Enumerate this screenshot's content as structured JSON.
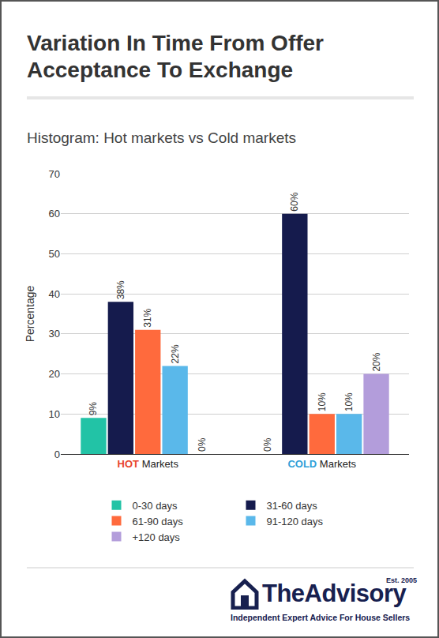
{
  "chart_data": {
    "type": "bar",
    "title": "Variation In Time From Offer Acceptance To Exchange",
    "subtitle": "Histogram: Hot markets vs Cold markets",
    "y_label": "Percentage",
    "categories": [
      "HOT Markets",
      "COLD Markets"
    ],
    "series": [
      {
        "name": "0-30 days",
        "color": "#22c3a6",
        "values": [
          9,
          0
        ],
        "value_labels": [
          "9%",
          "0%"
        ]
      },
      {
        "name": "31-60 days",
        "color": "#151b4d",
        "values": [
          38,
          60
        ],
        "value_labels": [
          "38%",
          "60%"
        ]
      },
      {
        "name": "61-90 days",
        "color": "#ff6a3d",
        "values": [
          31,
          10
        ],
        "value_labels": [
          "31%",
          "10%"
        ]
      },
      {
        "name": "91-120 days",
        "color": "#5ab8ea",
        "values": [
          22,
          10
        ],
        "value_labels": [
          "22%",
          "10%"
        ]
      },
      {
        "name": "+120 days",
        "color": "#b39ddb",
        "values": [
          0,
          20
        ],
        "value_labels": [
          "0%",
          "20%"
        ]
      }
    ],
    "ylim": [
      0,
      70
    ],
    "yticks": [
      0,
      10,
      20,
      30,
      40,
      50,
      60,
      70
    ],
    "grid": true,
    "legend": "bottom",
    "data_labels": true
  },
  "footer": {
    "brand": "TheAdvisory",
    "established": "Est. 2005",
    "tagline": "Independent Expert Advice For House Sellers"
  }
}
